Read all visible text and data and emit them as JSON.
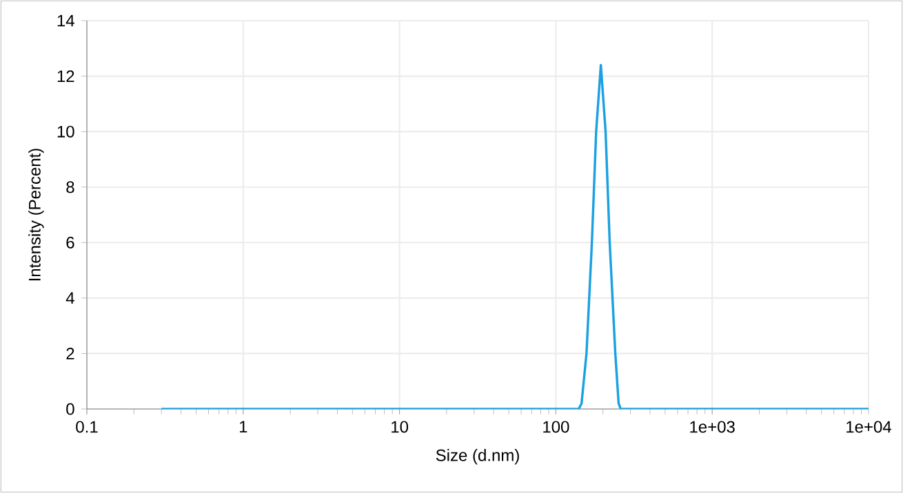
{
  "chart_data": {
    "type": "line",
    "xlabel": "Size (d.nm)",
    "ylabel": "Intensity (Percent)",
    "log": "x",
    "xlim": [
      0.1,
      10000
    ],
    "xticks": [
      {
        "value": 0.1,
        "label": "0.1"
      },
      {
        "value": 1,
        "label": "1"
      },
      {
        "value": 10,
        "label": "10"
      },
      {
        "value": 100,
        "label": "100"
      },
      {
        "value": 1000,
        "label": "1e+03"
      },
      {
        "value": 10000,
        "label": "1e+04"
      }
    ],
    "ylim": [
      0,
      14
    ],
    "yticks": [
      0,
      2,
      4,
      6,
      8,
      10,
      12,
      14
    ],
    "grid": true,
    "marker": "none",
    "line_style": "solid",
    "series": [
      {
        "color": "#1ba1e2",
        "x": [
          0.3,
          140,
          146,
          157,
          170,
          181,
          194,
          208,
          221,
          240,
          252,
          260,
          10000
        ],
        "values": [
          0,
          0,
          0.2,
          2,
          6,
          10,
          12.4,
          10,
          6,
          2,
          0.2,
          0,
          0
        ]
      }
    ]
  }
}
